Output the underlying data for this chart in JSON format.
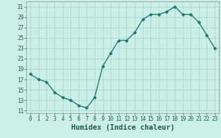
{
  "x": [
    0,
    1,
    2,
    3,
    4,
    5,
    6,
    7,
    8,
    9,
    10,
    11,
    12,
    13,
    14,
    15,
    16,
    17,
    18,
    19,
    20,
    21,
    22,
    23
  ],
  "y": [
    18,
    17,
    16.5,
    14.5,
    13.5,
    13,
    12,
    11.5,
    13.5,
    19.5,
    22,
    24.5,
    24.5,
    26,
    28.5,
    29.5,
    29.5,
    30,
    31,
    29.5,
    29.5,
    28,
    25.5,
    23
  ],
  "line_color": "#1a7a6a",
  "marker": "D",
  "markersize": 2.5,
  "linewidth": 1.0,
  "background_color": "#cceee8",
  "grid_color": "#aad8d0",
  "xlabel": "Humidex (Indice chaleur)",
  "xlim": [
    -0.5,
    23.5
  ],
  "ylim": [
    10.5,
    32
  ],
  "yticks": [
    11,
    13,
    15,
    17,
    19,
    21,
    23,
    25,
    27,
    29,
    31
  ],
  "xticks": [
    0,
    1,
    2,
    3,
    4,
    5,
    6,
    7,
    8,
    9,
    10,
    11,
    12,
    13,
    14,
    15,
    16,
    17,
    18,
    19,
    20,
    21,
    22,
    23
  ],
  "tick_fontsize": 5.5,
  "xlabel_fontsize": 7.5,
  "tick_color": "#1a5a50"
}
